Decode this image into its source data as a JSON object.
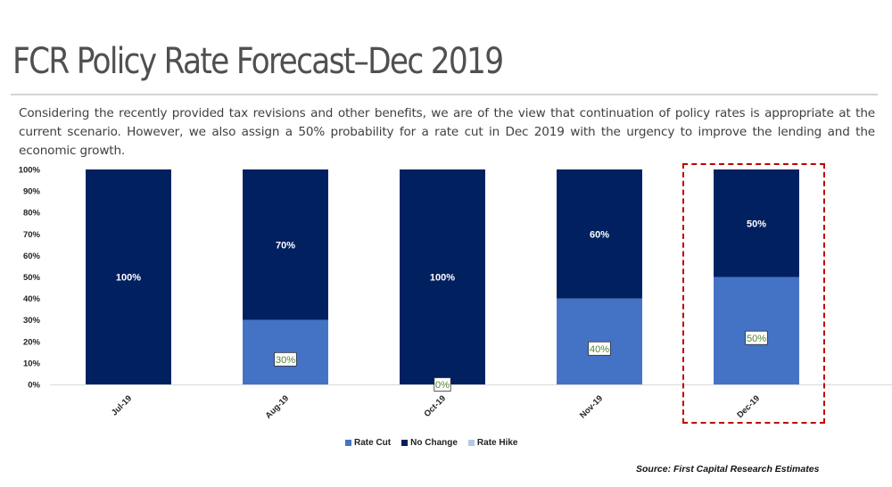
{
  "header": {
    "title": "FCR Policy Rate Forecast–Dec 2019",
    "description": "Considering the recently provided tax revisions and other benefits, we are of the view that continuation of policy rates is appropriate at the current scenario. However, we also assign a 50% probability for a rate cut in Dec 2019 with the urgency to improve the lending and the economic growth."
  },
  "footer": {
    "source": "Source: First Capital Research Estimates"
  },
  "highlight": {
    "category": "Dec-19",
    "color": "#c00000"
  },
  "chart_data": {
    "type": "bar",
    "stacked": true,
    "title": "",
    "xlabel": "",
    "ylabel": "",
    "categories": [
      "Jul-19",
      "Aug-19",
      "Oct-19",
      "Nov-19",
      "Dec-19"
    ],
    "series": [
      {
        "name": "Rate Cut",
        "color": "#4472c4",
        "values": [
          0,
          30,
          0,
          40,
          50
        ],
        "labels": [
          "",
          "30%",
          "0%",
          "40%",
          "50%"
        ],
        "label_color": "#548235"
      },
      {
        "name": "No Change",
        "color": "#002060",
        "values": [
          100,
          70,
          100,
          60,
          50
        ],
        "labels": [
          "100%",
          "70%",
          "100%",
          "60%",
          "50%"
        ],
        "label_color": "#ffffff"
      },
      {
        "name": "Rate Hike",
        "color": "#b4c7e7",
        "values": [
          0,
          0,
          0,
          0,
          0
        ],
        "labels": [
          "",
          "",
          "",
          "",
          ""
        ]
      }
    ],
    "yticks": [
      "0%",
      "10%",
      "20%",
      "30%",
      "40%",
      "50%",
      "60%",
      "70%",
      "80%",
      "90%",
      "100%"
    ],
    "ylim": [
      0,
      100
    ],
    "grid": false,
    "legend_position": "bottom"
  }
}
